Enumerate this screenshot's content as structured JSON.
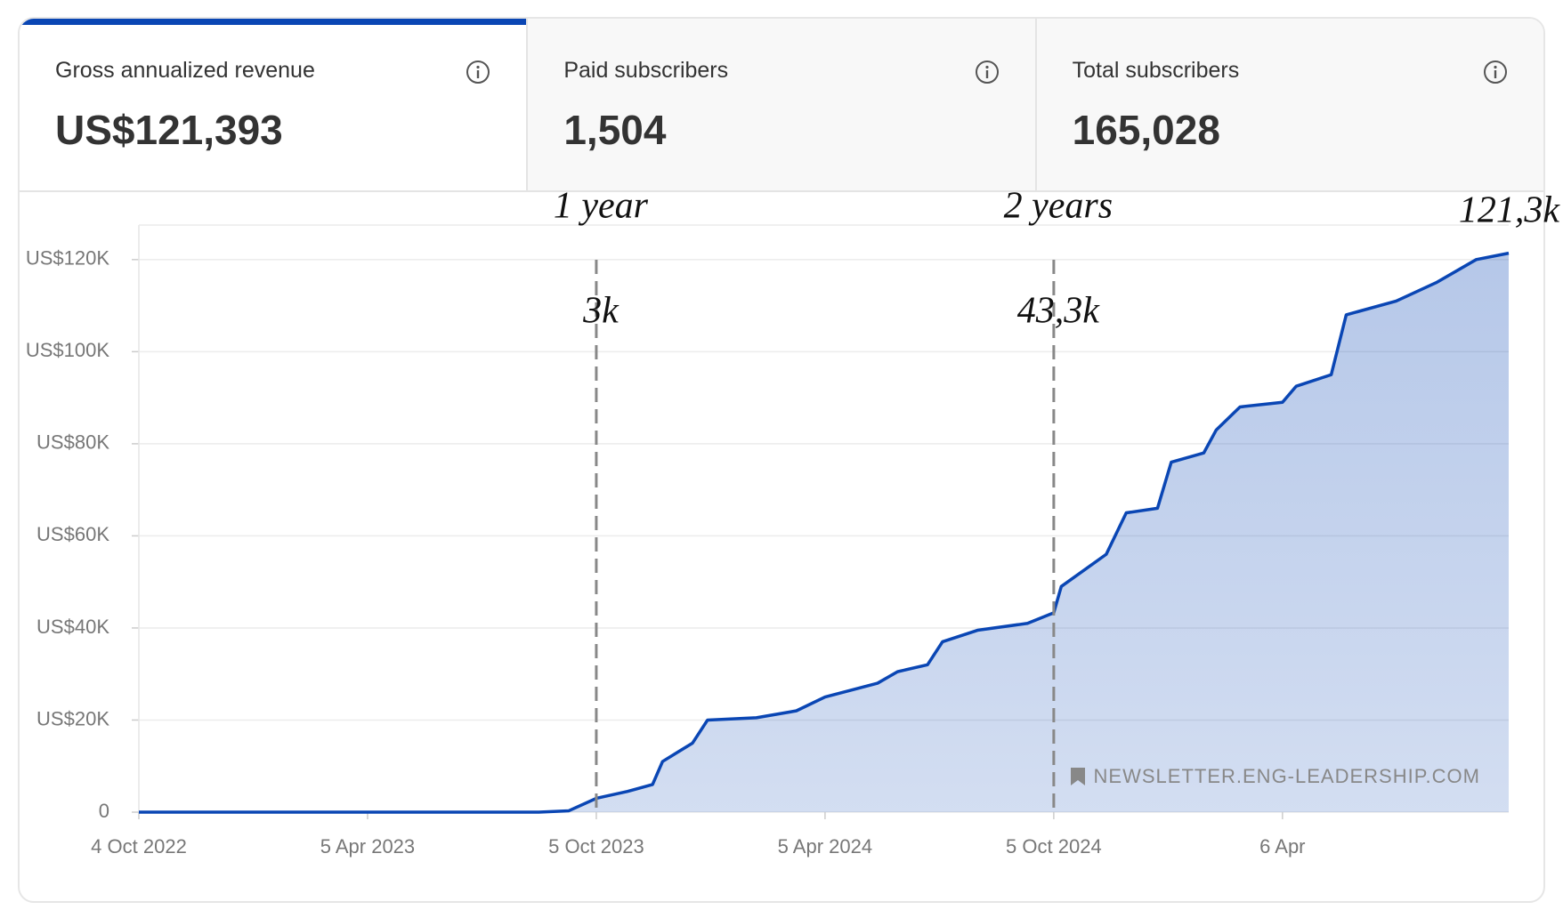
{
  "cards": [
    {
      "title": "Gross annualized revenue",
      "value": "US$121,393",
      "active": true
    },
    {
      "title": "Paid subscribers",
      "value": "1,504",
      "active": false
    },
    {
      "title": "Total subscribers",
      "value": "165,028",
      "active": false
    }
  ],
  "chart_data": {
    "type": "area",
    "x": [
      "2022-10-04",
      "2023-08-20",
      "2023-09-13",
      "2023-10-05",
      "2023-10-30",
      "2023-11-19",
      "2023-11-27",
      "2023-12-21",
      "2024-01-02",
      "2024-02-10",
      "2024-03-13",
      "2024-04-05",
      "2024-05-17",
      "2024-06-02",
      "2024-06-26",
      "2024-07-08",
      "2024-08-05",
      "2024-09-14",
      "2024-10-05",
      "2024-10-11",
      "2024-11-16",
      "2024-12-02",
      "2024-12-27",
      "2025-01-07",
      "2025-02-02",
      "2025-02-12",
      "2025-03-03",
      "2025-04-06",
      "2025-04-17",
      "2025-05-15",
      "2025-05-27",
      "2025-07-06",
      "2025-08-07",
      "2025-09-08",
      "2025-10-04"
    ],
    "series": [
      {
        "name": "Gross annualized revenue",
        "color": "#0a46b4",
        "values": [
          0,
          0,
          300,
          3000,
          4500,
          6000,
          11000,
          15000,
          20000,
          20500,
          22000,
          25000,
          28000,
          30500,
          32000,
          37000,
          39500,
          41000,
          43300,
          49000,
          56000,
          65000,
          66000,
          76000,
          78000,
          83000,
          88000,
          89000,
          92500,
          95000,
          108000,
          111000,
          115000,
          120000,
          121393
        ]
      }
    ],
    "xlim": [
      "2022-10-04",
      "2025-10-04"
    ],
    "xticks": [
      {
        "value": "2022-10-04",
        "label": "4 Oct 2022"
      },
      {
        "value": "2023-04-05",
        "label": "5 Apr 2023"
      },
      {
        "value": "2023-10-05",
        "label": "5 Oct 2023"
      },
      {
        "value": "2024-04-05",
        "label": "5 Apr 2024"
      },
      {
        "value": "2024-10-05",
        "label": "5 Oct 2024"
      },
      {
        "value": "2025-04-06",
        "label": "6 Apr"
      }
    ],
    "ylim": [
      0,
      127500
    ],
    "yticks": [
      0,
      {
        "value": 20000,
        "label": "US$20K"
      },
      {
        "value": 40000,
        "label": "US$40K"
      },
      {
        "value": 60000,
        "label": "US$60K"
      },
      {
        "value": 80000,
        "label": "US$80K"
      },
      {
        "value": 100000,
        "label": "US$100K"
      },
      {
        "value": 120000,
        "label": "US$120K"
      }
    ],
    "grid": true,
    "markers": [
      {
        "x": "2023-10-05",
        "label": "1 year",
        "value_label": "3k"
      },
      {
        "x": "2024-10-05",
        "label": "2 years",
        "value_label": "43,3k"
      }
    ],
    "end_label": "121,3k",
    "watermark": "NEWSLETTER.ENG-LEADERSHIP.COM"
  }
}
